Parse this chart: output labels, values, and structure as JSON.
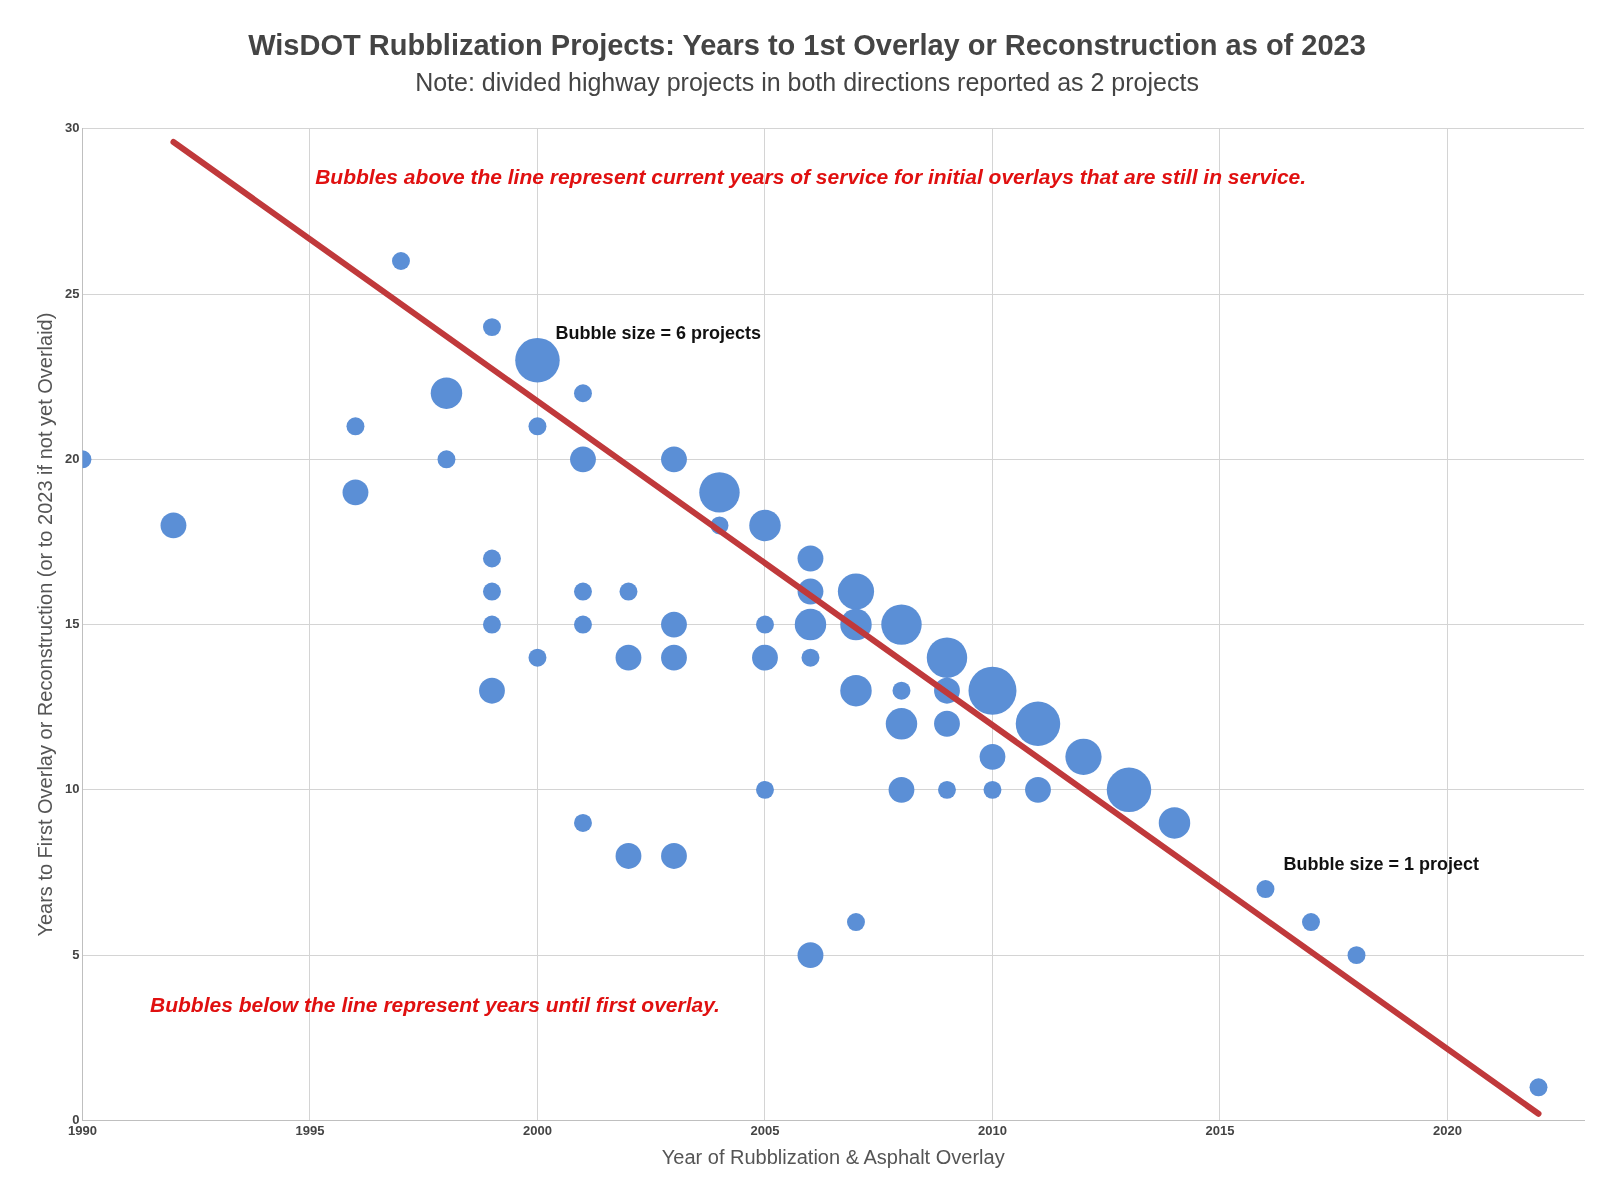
{
  "chart_data": {
    "type": "bubble",
    "title": "WisDOT Rubblization Projects: Years to 1st Overlay or Reconstruction as of 2023",
    "subtitle": "Note: divided highway projects in both directions reported as 2 projects",
    "xlabel": "Year of Rubblization & Asphalt Overlay",
    "ylabel": "Years to First Overlay or Reconstruction (or to 2023 if not yet Overlaid)",
    "xlim": [
      1990,
      2023
    ],
    "xticks": [
      1990,
      1995,
      2000,
      2005,
      2010,
      2015,
      2020
    ],
    "ylim": [
      0,
      30
    ],
    "yticks": [
      0,
      5,
      10,
      15,
      20,
      25,
      30
    ],
    "grid": true,
    "legend": false,
    "annotations": [
      "Bubbles above the line represent current years of service for initial overlays that are still in service.",
      "Bubbles below the line represent years until first overlay.",
      {
        "text": "Bubble size = 6 projects",
        "x": 2000,
        "y": 23
      },
      {
        "text": "Bubble size = 1 project",
        "x": 2016,
        "y": 7
      }
    ],
    "series": [
      {
        "type": "bubble",
        "color": "#5b8fd6",
        "x": [
          1990,
          1992,
          1996,
          1996,
          1997,
          1998,
          1998,
          1999,
          1999,
          1999,
          1999,
          1999,
          2000,
          2000,
          2000,
          2001,
          2001,
          2001,
          2001,
          2001,
          2002,
          2002,
          2002,
          2003,
          2003,
          2003,
          2003,
          2004,
          2004,
          2005,
          2005,
          2005,
          2005,
          2006,
          2006,
          2006,
          2006,
          2006,
          2007,
          2007,
          2007,
          2007,
          2008,
          2008,
          2008,
          2008,
          2009,
          2009,
          2009,
          2009,
          2010,
          2010,
          2010,
          2011,
          2011,
          2012,
          2013,
          2014,
          2016,
          2017,
          2018,
          2022
        ],
        "values": [
          20,
          18,
          21,
          19,
          26,
          22,
          20,
          24,
          17,
          16,
          15,
          13,
          23,
          21,
          14,
          22,
          20,
          16,
          15,
          9,
          16,
          14,
          8,
          20,
          15,
          14,
          8,
          19,
          18,
          18,
          15,
          14,
          10,
          17,
          16,
          15,
          14,
          5,
          16,
          15,
          13,
          6,
          15,
          13,
          12,
          10,
          14,
          13,
          12,
          10,
          13,
          11,
          10,
          12,
          10,
          11,
          10,
          9,
          7,
          6,
          5,
          1
        ],
        "sizes": [
          0.14,
          0.29,
          0.14,
          0.29,
          0.14,
          0.43,
          0.14,
          0.14,
          0.14,
          0.14,
          0.14,
          0.29,
          0.86,
          0.14,
          0.14,
          0.14,
          0.29,
          0.14,
          0.14,
          0.14,
          0.14,
          0.29,
          0.29,
          0.29,
          0.29,
          0.29,
          0.29,
          0.71,
          0.14,
          0.43,
          0.14,
          0.29,
          0.14,
          0.29,
          0.29,
          0.43,
          0.14,
          0.29,
          0.57,
          0.43,
          0.43,
          0.14,
          0.71,
          0.14,
          0.43,
          0.29,
          0.71,
          0.29,
          0.29,
          0.14,
          1,
          0.29,
          0.14,
          0.86,
          0.29,
          0.57,
          0.86,
          0.43,
          0.14,
          0.14,
          0.14,
          0.14
        ]
      },
      {
        "type": "line",
        "color": "#c0393b",
        "x": [
          1992,
          2022
        ],
        "values": [
          29.6,
          0.2
        ]
      }
    ]
  }
}
